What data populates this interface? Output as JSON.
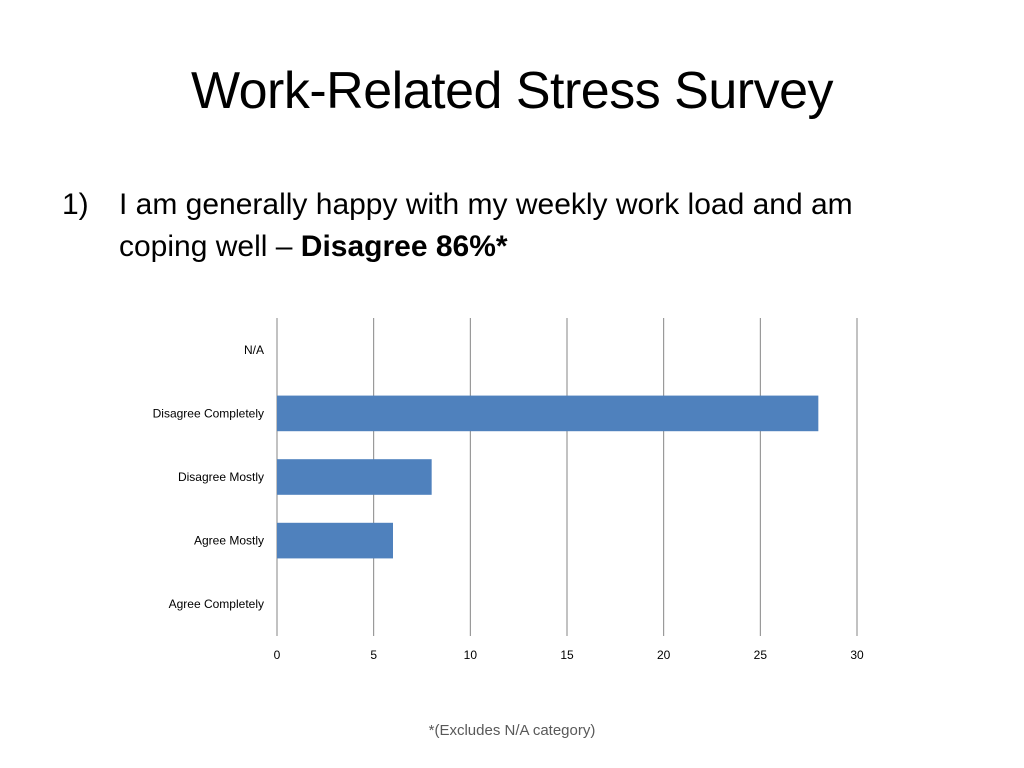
{
  "slide": {
    "title": "Work-Related Stress Survey",
    "bullet_number": "1)",
    "bullet_text": "I am generally happy with my weekly work load and am coping well – ",
    "bullet_emphasis": "Disagree 86%*",
    "footnote": "*(Excludes N/A category)"
  },
  "colors": {
    "bar": "#4F81BD",
    "grid": "#868686",
    "label": "#000000"
  },
  "chart_data": {
    "type": "bar",
    "orientation": "horizontal",
    "categories": [
      "N/A",
      "Disagree Completely",
      "Disagree Mostly",
      "Agree Mostly",
      "Agree Completely"
    ],
    "values": [
      0,
      28,
      8,
      6,
      0
    ],
    "xlim": [
      0,
      30
    ],
    "xticks": [
      0,
      5,
      10,
      15,
      20,
      25,
      30
    ],
    "grid": true,
    "legend": "none"
  }
}
